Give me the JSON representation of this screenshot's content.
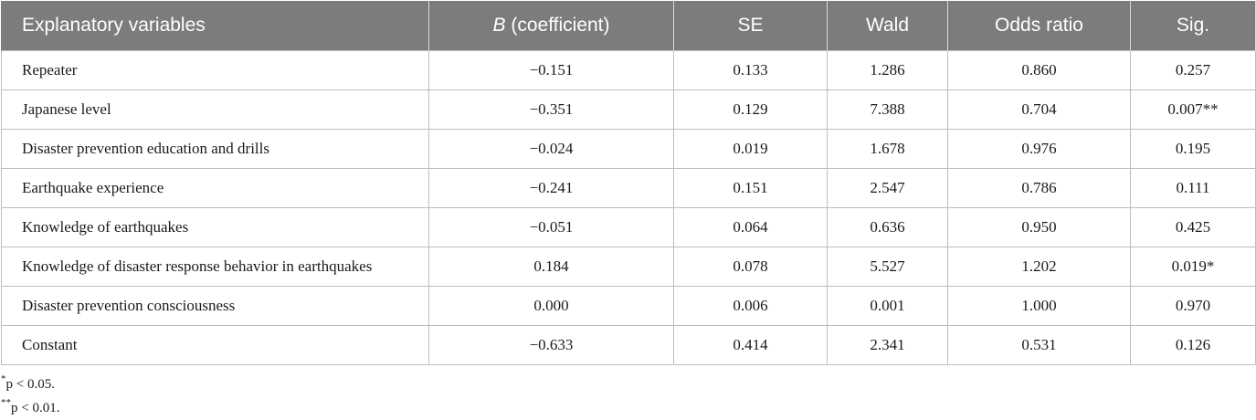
{
  "table": {
    "headers": [
      "Explanatory variables",
      "(coefficient)",
      "SE",
      "Wald",
      "Odds ratio",
      "Sig."
    ],
    "header_b_italic": "B",
    "rows": [
      [
        "Repeater",
        "−0.151",
        "0.133",
        "1.286",
        "0.860",
        "0.257"
      ],
      [
        "Japanese level",
        "−0.351",
        "0.129",
        "7.388",
        "0.704",
        "0.007**"
      ],
      [
        "Disaster prevention education and drills",
        "−0.024",
        "0.019",
        "1.678",
        "0.976",
        "0.195"
      ],
      [
        "Earthquake experience",
        "−0.241",
        "0.151",
        "2.547",
        "0.786",
        "0.111"
      ],
      [
        "Knowledge of earthquakes",
        "−0.051",
        "0.064",
        "0.636",
        "0.950",
        "0.425"
      ],
      [
        "Knowledge of disaster response behavior in earthquakes",
        "0.184",
        "0.078",
        "5.527",
        "1.202",
        "0.019*"
      ],
      [
        "Disaster prevention consciousness",
        "0.000",
        "0.006",
        "0.001",
        "1.000",
        "0.970"
      ],
      [
        "Constant",
        "−0.633",
        "0.414",
        "2.341",
        "0.531",
        "0.126"
      ]
    ]
  },
  "notes": [
    {
      "mark": "*",
      "text": "p < 0.05."
    },
    {
      "mark": "**",
      "text": "p < 0.01."
    }
  ]
}
